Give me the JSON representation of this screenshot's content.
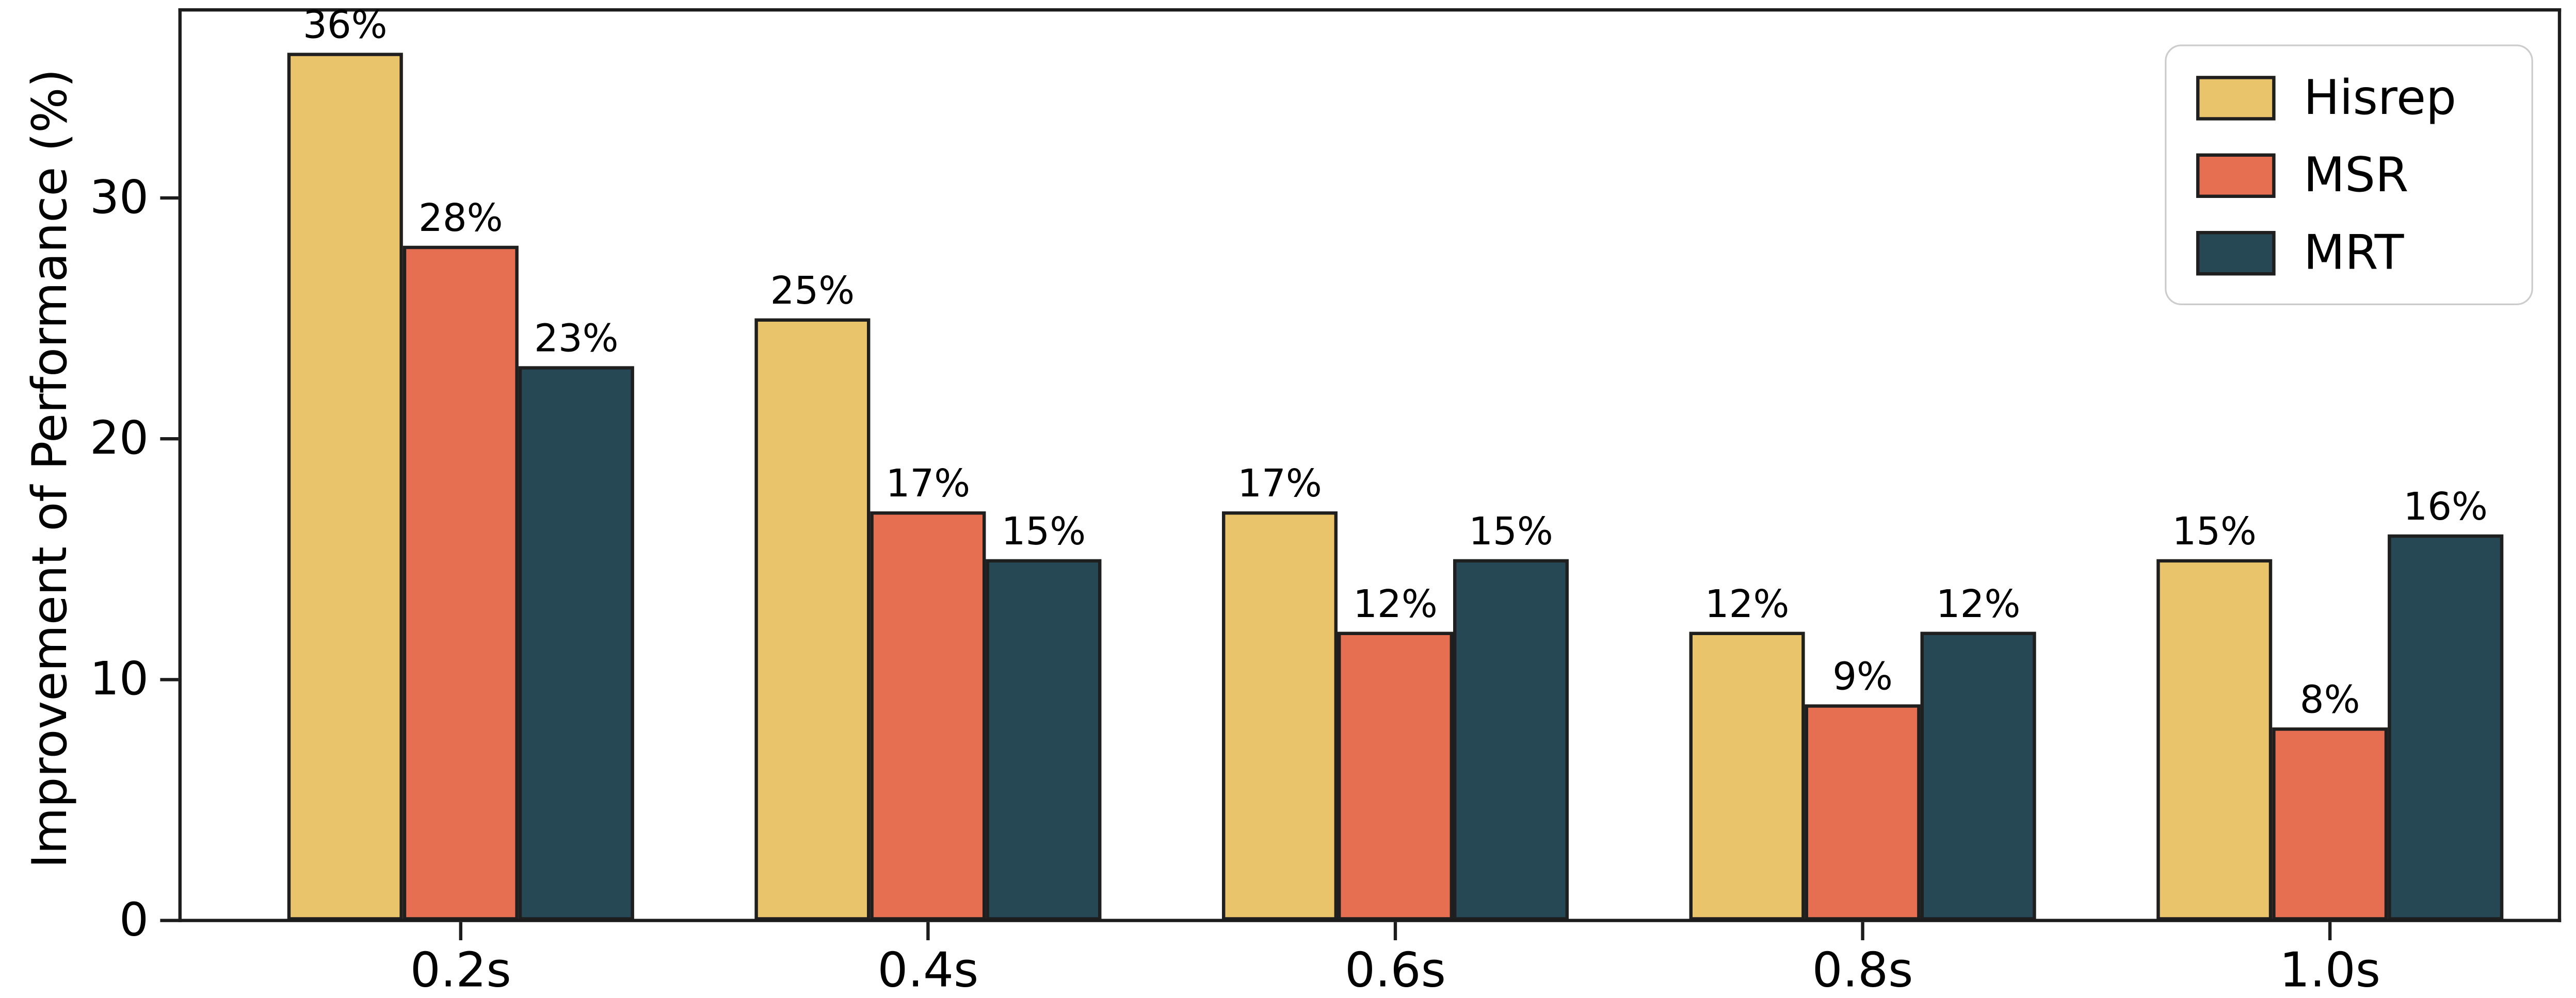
{
  "chart_data": {
    "type": "bar",
    "ylabel": "Improvement of Performance (%)",
    "categories": [
      "0.2s",
      "0.4s",
      "0.6s",
      "0.8s",
      "1.0s"
    ],
    "series": [
      {
        "name": "Hisrep",
        "color": "#E9C46A",
        "values": [
          36,
          25,
          17,
          12,
          15
        ],
        "labels": [
          "36%",
          "25%",
          "17%",
          "12%",
          "15%"
        ]
      },
      {
        "name": "MSR",
        "color": "#E76F51",
        "values": [
          28,
          17,
          12,
          9,
          8
        ],
        "labels": [
          "28%",
          "17%",
          "12%",
          "9%",
          "8%"
        ]
      },
      {
        "name": "MRT",
        "color": "#254854",
        "values": [
          23,
          15,
          15,
          12,
          16
        ],
        "labels": [
          "23%",
          "15%",
          "15%",
          "12%",
          "16%"
        ]
      }
    ],
    "yticks": [
      0,
      10,
      20,
      30
    ],
    "ylim": [
      0,
      37.8
    ],
    "edge_color": "#1f1f1f",
    "grid": false,
    "legend_position": "upper right"
  }
}
